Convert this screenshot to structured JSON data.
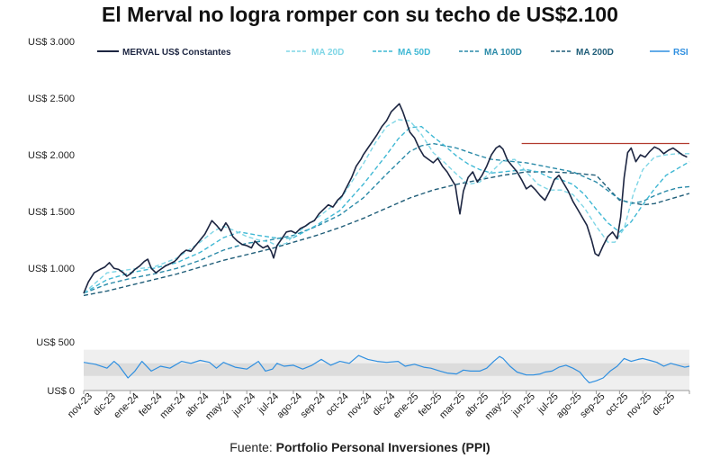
{
  "chart_data": {
    "type": "line",
    "title": "El Merval no logra romper con su techo de US$2.100",
    "source_label": "Fuente:",
    "source_name": "Portfolio Personal Inversiones (PPI)",
    "colors": {
      "merval": "#1c2541",
      "ma20": "#7fd6e6",
      "ma50": "#3fb8d4",
      "ma100": "#2a8aa8",
      "ma200": "#1f5d78",
      "rsi": "#2f8fe0",
      "resistance": "#b23a2e",
      "rsi_band": "#dcdcdc",
      "rsi_bg": "#efefef"
    },
    "legend": [
      {
        "key": "merval",
        "label": "MERVAL US$ Constantes",
        "style": "solid"
      },
      {
        "key": "ma20",
        "label": "MA 20D",
        "style": "dashed"
      },
      {
        "key": "ma50",
        "label": "MA 50D",
        "style": "dashed"
      },
      {
        "key": "ma100",
        "label": "MA 100D",
        "style": "dashed"
      },
      {
        "key": "ma200",
        "label": "MA 200D",
        "style": "dashed"
      },
      {
        "key": "rsi",
        "label": "RSI",
        "style": "solid"
      }
    ],
    "x_categories": [
      "nov-23",
      "dic-23",
      "ene-24",
      "feb-24",
      "mar-24",
      "abr-24",
      "may-24",
      "jun-24",
      "jul-24",
      "ago-24",
      "sep-24",
      "oct-24",
      "nov-24",
      "dic-24",
      "ene-25",
      "feb-25",
      "mar-25",
      "abr-25",
      "may-25",
      "jun-25",
      "jul-25",
      "ago-25",
      "sep-25",
      "oct-25",
      "nov-25",
      "dic-25"
    ],
    "price_axis": {
      "ylim": [
        700,
        3000
      ],
      "ticks": [
        1000,
        1500,
        2000,
        2500,
        3000
      ],
      "tick_labels": [
        "US$ 1.000",
        "US$ 1.500",
        "US$ 2.000",
        "US$ 2.500",
        "US$ 3.000"
      ]
    },
    "rsi_axis": {
      "ylim": [
        0,
        500
      ],
      "ticks": [
        0,
        500
      ],
      "tick_labels": [
        "US$ 0",
        "US$ 500"
      ],
      "band": [
        150,
        280
      ],
      "panel_top": 420
    },
    "resistance": {
      "value": 2100,
      "x_start": 18.8,
      "x_end": 26.0
    },
    "merval_points": [
      [
        0,
        780
      ],
      [
        0.2,
        880
      ],
      [
        0.45,
        960
      ],
      [
        0.7,
        990
      ],
      [
        0.9,
        1010
      ],
      [
        1.1,
        1050
      ],
      [
        1.3,
        1000
      ],
      [
        1.5,
        990
      ],
      [
        1.7,
        960
      ],
      [
        1.85,
        930
      ],
      [
        2.0,
        950
      ],
      [
        2.2,
        990
      ],
      [
        2.4,
        1020
      ],
      [
        2.6,
        1060
      ],
      [
        2.75,
        1080
      ],
      [
        2.9,
        1000
      ],
      [
        3.1,
        960
      ],
      [
        3.3,
        990
      ],
      [
        3.5,
        1020
      ],
      [
        3.7,
        1040
      ],
      [
        3.9,
        1060
      ],
      [
        4.0,
        1080
      ],
      [
        4.2,
        1130
      ],
      [
        4.4,
        1160
      ],
      [
        4.6,
        1150
      ],
      [
        4.8,
        1200
      ],
      [
        5.0,
        1250
      ],
      [
        5.2,
        1300
      ],
      [
        5.4,
        1380
      ],
      [
        5.5,
        1420
      ],
      [
        5.7,
        1380
      ],
      [
        5.9,
        1330
      ],
      [
        6.1,
        1400
      ],
      [
        6.2,
        1370
      ],
      [
        6.4,
        1280
      ],
      [
        6.6,
        1240
      ],
      [
        6.8,
        1210
      ],
      [
        7.0,
        1200
      ],
      [
        7.2,
        1180
      ],
      [
        7.35,
        1240
      ],
      [
        7.5,
        1210
      ],
      [
        7.7,
        1180
      ],
      [
        7.9,
        1200
      ],
      [
        8.05,
        1150
      ],
      [
        8.15,
        1090
      ],
      [
        8.3,
        1200
      ],
      [
        8.5,
        1260
      ],
      [
        8.7,
        1320
      ],
      [
        8.9,
        1330
      ],
      [
        9.1,
        1310
      ],
      [
        9.3,
        1350
      ],
      [
        9.5,
        1370
      ],
      [
        9.7,
        1400
      ],
      [
        9.9,
        1420
      ],
      [
        10.1,
        1480
      ],
      [
        10.3,
        1520
      ],
      [
        10.5,
        1560
      ],
      [
        10.7,
        1540
      ],
      [
        10.9,
        1600
      ],
      [
        11.1,
        1640
      ],
      [
        11.3,
        1720
      ],
      [
        11.5,
        1800
      ],
      [
        11.7,
        1900
      ],
      [
        11.9,
        1960
      ],
      [
        12.0,
        2000
      ],
      [
        12.2,
        2060
      ],
      [
        12.4,
        2120
      ],
      [
        12.6,
        2180
      ],
      [
        12.8,
        2250
      ],
      [
        13.0,
        2300
      ],
      [
        13.2,
        2380
      ],
      [
        13.4,
        2420
      ],
      [
        13.55,
        2450
      ],
      [
        13.7,
        2380
      ],
      [
        13.85,
        2290
      ],
      [
        14.0,
        2200
      ],
      [
        14.2,
        2150
      ],
      [
        14.4,
        2060
      ],
      [
        14.6,
        1990
      ],
      [
        14.8,
        1960
      ],
      [
        15.0,
        1930
      ],
      [
        15.2,
        1970
      ],
      [
        15.4,
        1900
      ],
      [
        15.6,
        1850
      ],
      [
        15.8,
        1780
      ],
      [
        15.95,
        1730
      ],
      [
        16.05,
        1600
      ],
      [
        16.15,
        1480
      ],
      [
        16.3,
        1680
      ],
      [
        16.5,
        1800
      ],
      [
        16.7,
        1850
      ],
      [
        16.9,
        1760
      ],
      [
        17.1,
        1820
      ],
      [
        17.3,
        1900
      ],
      [
        17.5,
        2000
      ],
      [
        17.7,
        2060
      ],
      [
        17.85,
        2080
      ],
      [
        18.0,
        2050
      ],
      [
        18.2,
        1950
      ],
      [
        18.4,
        1900
      ],
      [
        18.6,
        1850
      ],
      [
        18.8,
        1780
      ],
      [
        19.0,
        1700
      ],
      [
        19.2,
        1730
      ],
      [
        19.4,
        1690
      ],
      [
        19.6,
        1640
      ],
      [
        19.8,
        1600
      ],
      [
        20.0,
        1680
      ],
      [
        20.2,
        1780
      ],
      [
        20.4,
        1820
      ],
      [
        20.6,
        1750
      ],
      [
        20.8,
        1680
      ],
      [
        21.0,
        1590
      ],
      [
        21.2,
        1520
      ],
      [
        21.4,
        1450
      ],
      [
        21.6,
        1380
      ],
      [
        21.8,
        1250
      ],
      [
        21.95,
        1130
      ],
      [
        22.1,
        1110
      ],
      [
        22.3,
        1200
      ],
      [
        22.5,
        1280
      ],
      [
        22.7,
        1320
      ],
      [
        22.9,
        1260
      ],
      [
        23.05,
        1450
      ],
      [
        23.2,
        1800
      ],
      [
        23.35,
        2020
      ],
      [
        23.5,
        2060
      ],
      [
        23.7,
        1940
      ],
      [
        23.9,
        2000
      ],
      [
        24.1,
        1980
      ],
      [
        24.3,
        2030
      ],
      [
        24.5,
        2070
      ],
      [
        24.7,
        2050
      ],
      [
        24.9,
        2010
      ],
      [
        25.1,
        2040
      ],
      [
        25.3,
        2060
      ],
      [
        25.5,
        2030
      ],
      [
        25.7,
        2000
      ],
      [
        25.9,
        1980
      ]
    ],
    "ma20_points": [
      [
        0,
        780
      ],
      [
        1,
        960
      ],
      [
        2,
        990
      ],
      [
        3,
        1010
      ],
      [
        4,
        1090
      ],
      [
        5,
        1230
      ],
      [
        5.6,
        1330
      ],
      [
        6,
        1370
      ],
      [
        6.5,
        1330
      ],
      [
        7,
        1280
      ],
      [
        7.5,
        1250
      ],
      [
        8,
        1230
      ],
      [
        8.3,
        1200
      ],
      [
        8.7,
        1220
      ],
      [
        9,
        1290
      ],
      [
        10,
        1440
      ],
      [
        11,
        1600
      ],
      [
        12,
        1920
      ],
      [
        12.5,
        2100
      ],
      [
        13,
        2250
      ],
      [
        13.5,
        2310
      ],
      [
        14,
        2300
      ],
      [
        14.5,
        2180
      ],
      [
        15,
        2020
      ],
      [
        15.5,
        1930
      ],
      [
        16,
        1830
      ],
      [
        16.5,
        1740
      ],
      [
        17,
        1760
      ],
      [
        17.5,
        1850
      ],
      [
        18,
        1950
      ],
      [
        18.5,
        1960
      ],
      [
        19,
        1850
      ],
      [
        19.5,
        1740
      ],
      [
        20,
        1690
      ],
      [
        20.5,
        1690
      ],
      [
        21,
        1650
      ],
      [
        21.5,
        1530
      ],
      [
        22,
        1370
      ],
      [
        22.5,
        1230
      ],
      [
        22.8,
        1230
      ],
      [
        23.2,
        1350
      ],
      [
        23.6,
        1660
      ],
      [
        24,
        1870
      ],
      [
        24.5,
        1980
      ],
      [
        25,
        2000
      ],
      [
        25.5,
        2010
      ],
      [
        26,
        2010
      ]
    ],
    "ma50_points": [
      [
        0,
        780
      ],
      [
        1,
        900
      ],
      [
        2,
        960
      ],
      [
        3,
        1000
      ],
      [
        4,
        1050
      ],
      [
        5,
        1140
      ],
      [
        6,
        1270
      ],
      [
        6.7,
        1320
      ],
      [
        7.5,
        1290
      ],
      [
        8.5,
        1260
      ],
      [
        9,
        1270
      ],
      [
        10,
        1380
      ],
      [
        11,
        1510
      ],
      [
        12,
        1740
      ],
      [
        12.5,
        1870
      ],
      [
        13,
        2000
      ],
      [
        13.5,
        2140
      ],
      [
        14,
        2240
      ],
      [
        14.5,
        2250
      ],
      [
        15,
        2160
      ],
      [
        15.5,
        2080
      ],
      [
        16,
        1990
      ],
      [
        16.5,
        1920
      ],
      [
        17,
        1870
      ],
      [
        17.5,
        1840
      ],
      [
        18,
        1850
      ],
      [
        18.5,
        1860
      ],
      [
        19,
        1870
      ],
      [
        19.5,
        1850
      ],
      [
        20,
        1800
      ],
      [
        20.5,
        1780
      ],
      [
        21,
        1740
      ],
      [
        21.5,
        1650
      ],
      [
        22,
        1520
      ],
      [
        22.5,
        1400
      ],
      [
        23,
        1320
      ],
      [
        23.5,
        1410
      ],
      [
        24,
        1560
      ],
      [
        24.5,
        1700
      ],
      [
        25,
        1820
      ],
      [
        25.5,
        1880
      ],
      [
        26,
        1940
      ]
    ],
    "ma100_points": [
      [
        0,
        780
      ],
      [
        1,
        860
      ],
      [
        2,
        910
      ],
      [
        3,
        950
      ],
      [
        4,
        1000
      ],
      [
        5,
        1070
      ],
      [
        6,
        1160
      ],
      [
        7,
        1220
      ],
      [
        8,
        1250
      ],
      [
        9,
        1290
      ],
      [
        10,
        1370
      ],
      [
        11,
        1470
      ],
      [
        12,
        1620
      ],
      [
        13,
        1830
      ],
      [
        13.5,
        1930
      ],
      [
        14,
        2030
      ],
      [
        14.5,
        2080
      ],
      [
        15,
        2100
      ],
      [
        15.5,
        2080
      ],
      [
        16,
        2060
      ],
      [
        17,
        1990
      ],
      [
        17.5,
        1960
      ],
      [
        18,
        1950
      ],
      [
        18.5,
        1940
      ],
      [
        19,
        1930
      ],
      [
        19.5,
        1910
      ],
      [
        20,
        1890
      ],
      [
        21,
        1850
      ],
      [
        22,
        1760
      ],
      [
        23,
        1610
      ],
      [
        23.5,
        1570
      ],
      [
        24,
        1590
      ],
      [
        24.5,
        1640
      ],
      [
        25,
        1680
      ],
      [
        25.5,
        1710
      ],
      [
        26,
        1720
      ]
    ],
    "ma200_points": [
      [
        0,
        760
      ],
      [
        1,
        800
      ],
      [
        2,
        850
      ],
      [
        3,
        900
      ],
      [
        4,
        950
      ],
      [
        5,
        1010
      ],
      [
        6,
        1070
      ],
      [
        7,
        1120
      ],
      [
        8,
        1170
      ],
      [
        9,
        1230
      ],
      [
        10,
        1290
      ],
      [
        11,
        1360
      ],
      [
        12,
        1440
      ],
      [
        13,
        1530
      ],
      [
        14,
        1620
      ],
      [
        15,
        1690
      ],
      [
        16,
        1740
      ],
      [
        17,
        1780
      ],
      [
        18,
        1820
      ],
      [
        19,
        1850
      ],
      [
        20,
        1850
      ],
      [
        21,
        1840
      ],
      [
        22,
        1820
      ],
      [
        23,
        1600
      ],
      [
        23.5,
        1580
      ],
      [
        24,
        1560
      ],
      [
        24.5,
        1570
      ],
      [
        25,
        1600
      ],
      [
        25.5,
        1630
      ],
      [
        26,
        1660
      ]
    ],
    "rsi_points": [
      [
        0,
        290
      ],
      [
        0.5,
        270
      ],
      [
        1,
        230
      ],
      [
        1.3,
        300
      ],
      [
        1.5,
        260
      ],
      [
        1.9,
        130
      ],
      [
        2.2,
        200
      ],
      [
        2.5,
        300
      ],
      [
        2.9,
        200
      ],
      [
        3.3,
        250
      ],
      [
        3.7,
        230
      ],
      [
        4.2,
        300
      ],
      [
        4.6,
        280
      ],
      [
        5.0,
        310
      ],
      [
        5.4,
        290
      ],
      [
        5.7,
        230
      ],
      [
        6.0,
        290
      ],
      [
        6.5,
        240
      ],
      [
        7.0,
        220
      ],
      [
        7.5,
        300
      ],
      [
        7.8,
        200
      ],
      [
        8.1,
        220
      ],
      [
        8.3,
        280
      ],
      [
        8.6,
        250
      ],
      [
        9.0,
        260
      ],
      [
        9.4,
        220
      ],
      [
        9.8,
        260
      ],
      [
        10.2,
        320
      ],
      [
        10.6,
        260
      ],
      [
        11.0,
        300
      ],
      [
        11.4,
        280
      ],
      [
        11.8,
        360
      ],
      [
        12.2,
        320
      ],
      [
        12.6,
        300
      ],
      [
        13.0,
        290
      ],
      [
        13.5,
        300
      ],
      [
        13.8,
        250
      ],
      [
        14.2,
        270
      ],
      [
        14.6,
        240
      ],
      [
        14.9,
        230
      ],
      [
        15.3,
        200
      ],
      [
        15.6,
        180
      ],
      [
        16.0,
        170
      ],
      [
        16.3,
        210
      ],
      [
        16.6,
        200
      ],
      [
        17.0,
        200
      ],
      [
        17.3,
        230
      ],
      [
        17.6,
        300
      ],
      [
        17.85,
        350
      ],
      [
        18.0,
        330
      ],
      [
        18.3,
        250
      ],
      [
        18.6,
        190
      ],
      [
        19.0,
        160
      ],
      [
        19.3,
        160
      ],
      [
        19.6,
        170
      ],
      [
        19.8,
        190
      ],
      [
        20.1,
        200
      ],
      [
        20.4,
        240
      ],
      [
        20.7,
        260
      ],
      [
        21.0,
        230
      ],
      [
        21.3,
        190
      ],
      [
        21.5,
        130
      ],
      [
        21.7,
        80
      ],
      [
        22.0,
        100
      ],
      [
        22.3,
        130
      ],
      [
        22.6,
        200
      ],
      [
        22.9,
        250
      ],
      [
        23.2,
        330
      ],
      [
        23.5,
        300
      ],
      [
        23.8,
        320
      ],
      [
        24.0,
        330
      ],
      [
        24.3,
        310
      ],
      [
        24.6,
        290
      ],
      [
        24.9,
        250
      ],
      [
        25.2,
        280
      ],
      [
        25.5,
        260
      ],
      [
        25.8,
        240
      ],
      [
        26.0,
        250
      ]
    ]
  }
}
